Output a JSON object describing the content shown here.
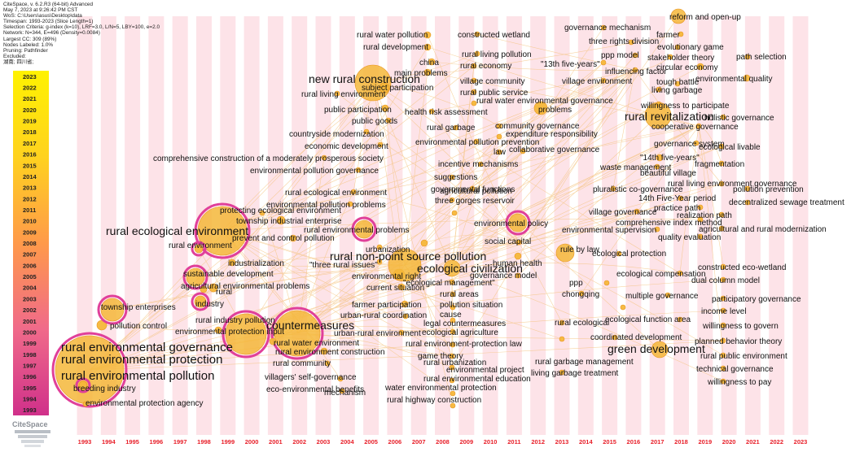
{
  "app": {
    "header_lines": [
      "CiteSpace, v. 6.2.R3 (64-bit) Advanced",
      "May 7, 2023 at 9:26:42 PM CST",
      "WoS: C:\\Users\\asus\\Desktop\\data",
      "Timespan: 1993-2023 (Slice Length=1)",
      "Selection Criteria: g-index (k=10), LRF=3.0, L/N=5, LBY=100, e=2.0",
      "Network: N=344, E=496 (Density=0.0084)",
      "Largest CC: 309 (89%)",
      "Nodes Labeled: 1.0%",
      "Pruning: Pathfinder",
      "Excluded:",
      "湖南; 四川省;"
    ],
    "logo_text": "CiteSpace"
  },
  "colors": {
    "column_stripe": "#fde3e8",
    "axis_year_text": "#e8202a",
    "link": "#f4c27a",
    "node_fill": "#f5b73a",
    "node_outline": "#e0409a",
    "legend_gradient": [
      "#fff200",
      "#ffd21f",
      "#ff9a4a",
      "#f06a8a",
      "#d0308a"
    ]
  },
  "chart_data": {
    "type": "timeline-network",
    "years": [
      1993,
      1994,
      1995,
      1996,
      1997,
      1998,
      1999,
      2000,
      2001,
      2002,
      2003,
      2004,
      2005,
      2006,
      2007,
      2008,
      2009,
      2010,
      2011,
      2012,
      2013,
      2014,
      2015,
      2016,
      2017,
      2018,
      2019,
      2020,
      2021,
      2022,
      2023
    ],
    "legend_years": [
      2023,
      2022,
      2021,
      2020,
      2019,
      2018,
      2017,
      2016,
      2015,
      2014,
      2013,
      2012,
      2011,
      2010,
      2009,
      2008,
      2007,
      2006,
      2005,
      2004,
      2003,
      2002,
      2001,
      2000,
      1999,
      1998,
      1997,
      1996,
      1995,
      1994,
      1993
    ],
    "keywords": [
      "rural environmental pollution",
      "rural environmental protection",
      "rural environmental governance",
      "breeding industry",
      "environmental protection agency",
      "pollution control",
      "township enterprises",
      "rural ecological environment",
      "rural environment",
      "sustainable development",
      "rural",
      "industry",
      "agricultural environmental problems",
      "industrialization",
      "protecting ecological environment",
      "township industrial enterprise",
      "prevent and control pollution",
      "rural industry pollution",
      "environmental protection input",
      "countermeasures",
      "rural water environment",
      "rural environment construction",
      "rural community",
      "villagers' self-governance",
      "eco-environmental benefits",
      "mechanism",
      "new rural construction",
      "subject participation",
      "rural living environment",
      "public participation",
      "public goods",
      "countryside modernization",
      "economic development",
      "comprehensive construction of a moderately prosperous society",
      "environmental pollution governance",
      "rural ecological environment",
      "environmental pollution problems",
      "rural environmental problems",
      "urbanization",
      "\"three rural issues\"",
      "rural non-point source pollution",
      "environmental right",
      "current situation",
      "farmer participation",
      "urban-rural coordination",
      "urban-rural environment",
      "rural water pollution",
      "rural development",
      "china",
      "main problems",
      "health risk assessment",
      "rural garbage",
      "environmental pollution prevention",
      "incentive mechanisms",
      "suggestions",
      "governmental functions",
      "agricultural pollution",
      "three gorges reservoir",
      "ecological civilization",
      "\"ecological management\"",
      "rural areas",
      "pollution situation",
      "cause",
      "legal countermeasures",
      "ecological agriculture",
      "rural environment-protection law",
      "game theory",
      "rural urbanization",
      "environmental project",
      "rural environmental education",
      "water environmental protection",
      "rural highway construction",
      "constructed wetland",
      "rural living pollution",
      "rural economy",
      "village community",
      "rural public service",
      "rural water environmental governance",
      "problems",
      "community governance",
      "expenditure responsibility",
      "law",
      "collaborative governance",
      "environmental policy",
      "social capital",
      "human health",
      "governance model",
      "rule by law",
      "rural ecological",
      "rural garbage management",
      "living garbage treatment",
      "green development",
      "coordinated development",
      "governance mechanism",
      "three rights division",
      "ppp model",
      "influencing factor",
      "\"13th five-years\"",
      "village environment",
      "rural revitalization",
      "willingness to participate",
      "living garbage",
      "tough battle",
      "cooperative governance",
      "governance system",
      "\"14th five-years\"",
      "beautiful village",
      "waste management",
      "pluralistic co-governance",
      "14th Five-Year period",
      "village governance",
      "practice path",
      "comprehensive index method",
      "environmental supervision",
      "quality evaluation",
      "ecological protection",
      "ecological compensation",
      "ppp",
      "chongqing",
      "multiple governance",
      "ecological function area",
      "reform and open-up",
      "farmer",
      "evolutionary game",
      "stakeholder theory",
      "circular economy",
      "environmental quality",
      "holistic governance",
      "ecological livable",
      "fragmentation",
      "rural living environment governance",
      "realization path",
      "agricultural and rural modernization",
      "constructed eco-wetland",
      "dual column model",
      "participatory governance",
      "income level",
      "willingness to govern",
      "planned behavior theory",
      "rural public environment",
      "technical governance",
      "willingness to pay",
      "path selection",
      "pollution prevention",
      "decentralized sewage treatment",
      "chinese-style modernization"
    ]
  }
}
